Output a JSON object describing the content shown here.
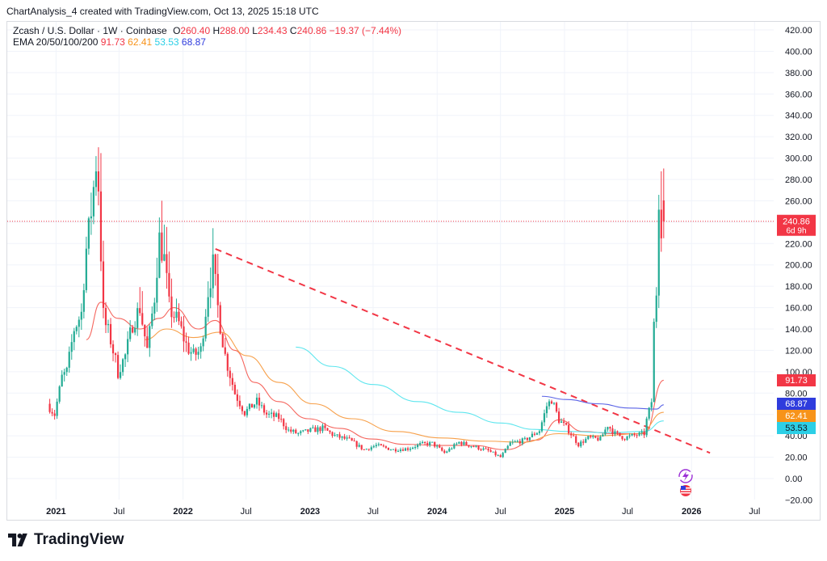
{
  "header": {
    "caption": "ChartAnalysis_4 created with TradingView.com, Oct 13, 2025 15:18 UTC"
  },
  "legend": {
    "symbol": "Zcash / U.S. Dollar · 1W · Coinbase",
    "open_label": "O",
    "open": "260.40",
    "high_label": "H",
    "high": "288.00",
    "low_label": "L",
    "low": "234.43",
    "close_label": "C",
    "close": "240.86",
    "change": "−19.37 (−7.44%)",
    "ema_label": "EMA 20/50/100/200",
    "ema20": "91.73",
    "ema50": "62.41",
    "ema100": "53.53",
    "ema200": "68.87"
  },
  "brand": {
    "name": "TradingView"
  },
  "colors": {
    "up": "#22ab94",
    "down": "#f23645",
    "ema20": "#f5665e",
    "ema50": "#f7a04a",
    "ema100": "#5ee6ee",
    "ema200": "#5a63e6",
    "trendline": "#f23645"
  },
  "chart_data": {
    "type": "candlestick",
    "title": "",
    "timeframe": "1W",
    "y_axis": {
      "min": -20,
      "max": 420,
      "step": 20,
      "tick_labels": [
        "−20.00",
        "0.00",
        "20.00",
        "40.00",
        "60.00",
        "80.00",
        "100.00",
        "120.00",
        "140.00",
        "160.00",
        "180.00",
        "200.00",
        "220.00",
        "240.00",
        "260.00",
        "280.00",
        "300.00",
        "320.00",
        "340.00",
        "360.00",
        "380.00",
        "400.00",
        "420.00"
      ]
    },
    "x_axis": {
      "start": "2020-12",
      "end": "2026-09",
      "ticks": [
        {
          "date": "2021-01",
          "label": "2021",
          "bold": true
        },
        {
          "date": "2021-07",
          "label": "Jul",
          "bold": false
        },
        {
          "date": "2022-01",
          "label": "2022",
          "bold": true
        },
        {
          "date": "2022-07",
          "label": "Jul",
          "bold": false
        },
        {
          "date": "2023-01",
          "label": "2023",
          "bold": true
        },
        {
          "date": "2023-07",
          "label": "Jul",
          "bold": false
        },
        {
          "date": "2024-01",
          "label": "2024",
          "bold": true
        },
        {
          "date": "2024-07",
          "label": "Jul",
          "bold": false
        },
        {
          "date": "2025-01",
          "label": "2025",
          "bold": true
        },
        {
          "date": "2025-07",
          "label": "Jul",
          "bold": false
        },
        {
          "date": "2026-01",
          "label": "2026",
          "bold": true
        },
        {
          "date": "2026-07",
          "label": "Jul",
          "bold": false
        }
      ]
    },
    "price_line": {
      "value": 240.86,
      "label": "240.86",
      "countdown": "6d 9h"
    },
    "axis_badges": [
      {
        "name": "ema20",
        "value": 91.73,
        "label": "91.73",
        "color": "#f23645"
      },
      {
        "name": "ema200",
        "value": 68.87,
        "label": "68.87",
        "color": "#2f3cdd"
      },
      {
        "name": "ema50",
        "value": 62.41,
        "label": "62.41",
        "color": "#f7931a"
      },
      {
        "name": "ema100",
        "value": 53.53,
        "label": "53.53",
        "color": "#2ccfe6"
      }
    ],
    "price_path": [
      [
        "2020-12-14",
        70
      ],
      [
        "2021-01-04",
        60
      ],
      [
        "2021-01-25",
        95
      ],
      [
        "2021-02-08",
        100
      ],
      [
        "2021-03-01",
        140
      ],
      [
        "2021-03-22",
        155
      ],
      [
        "2021-04-05",
        215
      ],
      [
        "2021-04-19",
        250
      ],
      [
        "2021-05-03",
        295
      ],
      [
        "2021-05-10",
        275
      ],
      [
        "2021-05-24",
        150
      ],
      [
        "2021-06-14",
        130
      ],
      [
        "2021-07-05",
        100
      ],
      [
        "2021-07-26",
        115
      ],
      [
        "2021-08-16",
        145
      ],
      [
        "2021-09-06",
        160
      ],
      [
        "2021-09-27",
        120
      ],
      [
        "2021-10-18",
        170
      ],
      [
        "2021-11-01",
        225
      ],
      [
        "2021-11-15",
        205
      ],
      [
        "2021-11-29",
        160
      ],
      [
        "2021-12-27",
        145
      ],
      [
        "2022-01-17",
        125
      ],
      [
        "2022-02-07",
        115
      ],
      [
        "2022-02-28",
        120
      ],
      [
        "2022-03-21",
        175
      ],
      [
        "2022-04-04",
        200
      ],
      [
        "2022-04-18",
        160
      ],
      [
        "2022-05-09",
        115
      ],
      [
        "2022-06-06",
        80
      ],
      [
        "2022-07-04",
        62
      ],
      [
        "2022-08-08",
        72
      ],
      [
        "2022-09-05",
        60
      ],
      [
        "2022-10-10",
        57
      ],
      [
        "2022-11-07",
        45
      ],
      [
        "2022-12-05",
        42
      ],
      [
        "2023-01-09",
        45
      ],
      [
        "2023-02-13",
        47
      ],
      [
        "2023-03-20",
        40
      ],
      [
        "2023-05-01",
        36
      ],
      [
        "2023-06-12",
        27
      ],
      [
        "2023-07-17",
        31
      ],
      [
        "2023-09-04",
        27
      ],
      [
        "2023-10-16",
        28
      ],
      [
        "2023-11-20",
        32
      ],
      [
        "2023-12-25",
        33
      ],
      [
        "2024-01-29",
        24
      ],
      [
        "2024-03-11",
        34
      ],
      [
        "2024-04-22",
        30
      ],
      [
        "2024-06-03",
        26
      ],
      [
        "2024-07-08",
        20
      ],
      [
        "2024-08-05",
        33
      ],
      [
        "2024-09-16",
        36
      ],
      [
        "2024-10-28",
        45
      ],
      [
        "2024-11-18",
        68
      ],
      [
        "2024-12-02",
        74
      ],
      [
        "2024-12-23",
        55
      ],
      [
        "2025-01-20",
        45
      ],
      [
        "2025-02-17",
        32
      ],
      [
        "2025-03-17",
        38
      ],
      [
        "2025-04-21",
        37
      ],
      [
        "2025-05-12",
        50
      ],
      [
        "2025-06-02",
        42
      ],
      [
        "2025-06-30",
        38
      ],
      [
        "2025-07-21",
        40
      ],
      [
        "2025-08-25",
        42
      ],
      [
        "2025-09-01",
        55
      ],
      [
        "2025-09-15",
        72
      ],
      [
        "2025-09-22",
        145
      ],
      [
        "2025-09-29",
        175
      ],
      [
        "2025-10-06",
        262
      ],
      [
        "2025-10-13",
        241
      ]
    ],
    "ema_series": [
      {
        "name": "EMA 20",
        "color": "#f5665e",
        "points": [
          [
            "2021-03-29",
            130
          ],
          [
            "2021-05-10",
            165
          ],
          [
            "2021-06-28",
            150
          ],
          [
            "2021-08-30",
            140
          ],
          [
            "2021-10-25",
            150
          ],
          [
            "2021-12-06",
            160
          ],
          [
            "2022-02-14",
            140
          ],
          [
            "2022-04-04",
            148
          ],
          [
            "2022-05-30",
            120
          ],
          [
            "2022-07-25",
            90
          ],
          [
            "2022-10-03",
            72
          ],
          [
            "2022-12-26",
            56
          ],
          [
            "2023-03-27",
            47
          ],
          [
            "2023-06-26",
            37
          ],
          [
            "2023-10-02",
            32
          ],
          [
            "2024-01-15",
            31
          ],
          [
            "2024-04-15",
            31
          ],
          [
            "2024-07-15",
            27
          ],
          [
            "2024-10-14",
            36
          ],
          [
            "2024-12-16",
            55
          ],
          [
            "2025-02-24",
            44
          ],
          [
            "2025-05-26",
            42
          ],
          [
            "2025-08-18",
            42
          ],
          [
            "2025-10-13",
            92
          ]
        ]
      },
      {
        "name": "EMA 50",
        "color": "#f7a04a",
        "points": [
          [
            "2021-09-13",
            130
          ],
          [
            "2021-11-15",
            140
          ],
          [
            "2022-01-31",
            132
          ],
          [
            "2022-04-18",
            137
          ],
          [
            "2022-07-04",
            115
          ],
          [
            "2022-10-03",
            90
          ],
          [
            "2023-01-09",
            70
          ],
          [
            "2023-05-01",
            56
          ],
          [
            "2023-09-04",
            44
          ],
          [
            "2024-01-15",
            38
          ],
          [
            "2024-05-20",
            35
          ],
          [
            "2024-09-02",
            34
          ],
          [
            "2024-12-16",
            42
          ],
          [
            "2025-04-07",
            40
          ],
          [
            "2025-08-04",
            42
          ],
          [
            "2025-10-13",
            62
          ]
        ]
      },
      {
        "name": "EMA 100",
        "color": "#5ee6ee",
        "points": [
          [
            "2022-11-21",
            123
          ],
          [
            "2023-03-06",
            105
          ],
          [
            "2023-07-03",
            88
          ],
          [
            "2023-11-06",
            72
          ],
          [
            "2024-03-04",
            62
          ],
          [
            "2024-07-01",
            52
          ],
          [
            "2024-10-07",
            46
          ],
          [
            "2025-01-13",
            44
          ],
          [
            "2025-05-05",
            43
          ],
          [
            "2025-08-18",
            44
          ],
          [
            "2025-10-13",
            54
          ]
        ]
      },
      {
        "name": "EMA 200",
        "color": "#5a63e6",
        "points": [
          [
            "2024-10-28",
            77
          ],
          [
            "2025-01-06",
            74
          ],
          [
            "2025-04-07",
            70
          ],
          [
            "2025-07-07",
            66
          ],
          [
            "2025-09-22",
            65
          ],
          [
            "2025-10-13",
            69
          ]
        ]
      }
    ],
    "trendline": {
      "style": "dashed",
      "start": [
        "2022-04-04",
        215
      ],
      "end": [
        "2026-02-23",
        24
      ]
    }
  }
}
